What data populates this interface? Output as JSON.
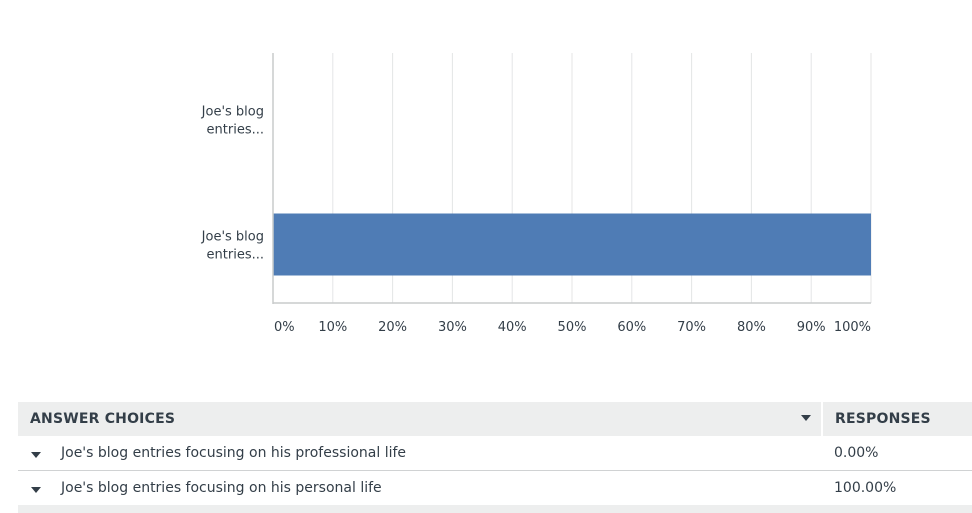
{
  "colors": {
    "bar": "#4f7cb5",
    "grid": "#e4e5e6",
    "axis": "#c9cbcc",
    "text": "#333e48",
    "header_bg": "#edeeee"
  },
  "chart_data": {
    "type": "bar",
    "orientation": "horizontal",
    "categories": [
      [
        "Joe's blog",
        "entries..."
      ],
      [
        "Joe's blog",
        "entries..."
      ]
    ],
    "values": [
      0.0,
      100.0
    ],
    "xlim": [
      0,
      100
    ],
    "xticks": [
      "0%",
      "10%",
      "20%",
      "30%",
      "40%",
      "50%",
      "60%",
      "70%",
      "80%",
      "90%",
      "100%"
    ],
    "grid": true
  },
  "table": {
    "header_choices": "ANSWER CHOICES",
    "header_responses": "RESPONSES",
    "rows": [
      {
        "label": "Joe's blog entries focusing on his professional life",
        "value": "0.00%"
      },
      {
        "label": "Joe's blog entries focusing on his personal life",
        "value": "100.00%"
      }
    ]
  }
}
